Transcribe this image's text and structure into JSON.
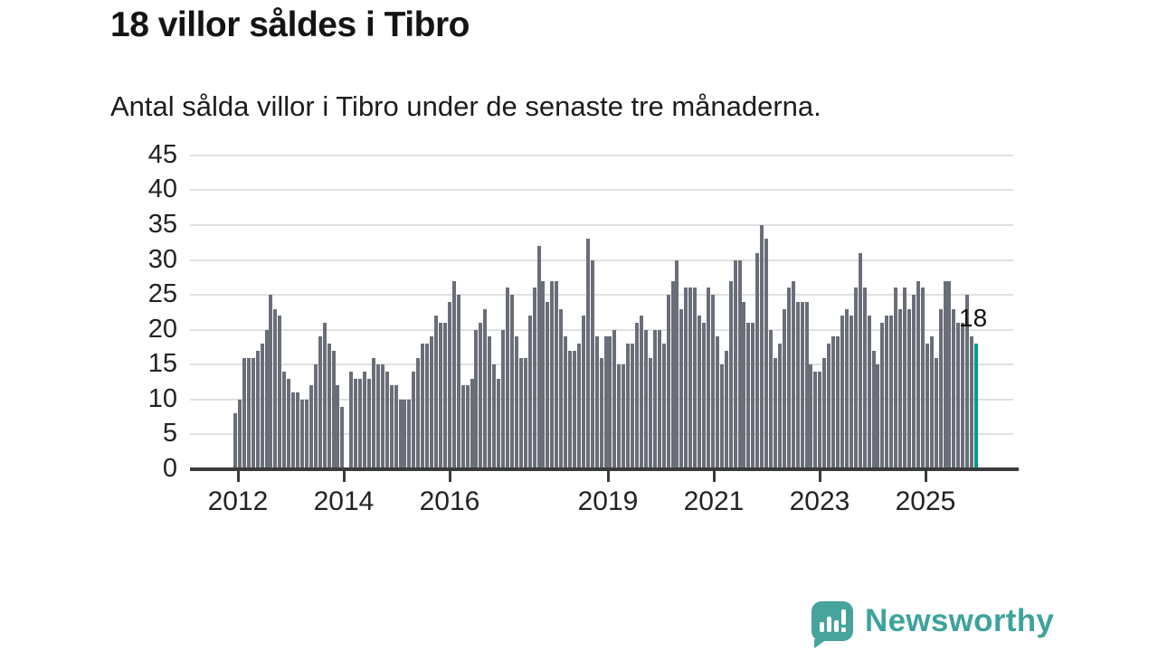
{
  "header": {
    "title": "18 villor såldes i Tibro",
    "subtitle": "Antal sålda villor i Tibro under de senaste tre månaderna."
  },
  "annotation": {
    "label": "18"
  },
  "logo": {
    "text": "Newsworthy",
    "icon": "newsworthy-speech-bubble-chart-icon"
  },
  "colors": {
    "bar": "#6a6e78",
    "highlight": "#009b8f",
    "grid": "#e0e0e0",
    "axis": "#3b3b3b",
    "text": "#1a1a1a",
    "logo_teal": "#3ea39c"
  },
  "chart_data": {
    "type": "bar",
    "title": "18 villor såldes i Tibro",
    "subtitle": "Antal sålda villor i Tibro under de senaste tre månaderna.",
    "xlabel": "",
    "ylabel": "",
    "ylim": [
      0,
      45
    ],
    "y_ticks": [
      0,
      5,
      10,
      15,
      20,
      25,
      30,
      35,
      40,
      45
    ],
    "x_tick_labels": [
      "2012",
      "2014",
      "2016",
      "2019",
      "2021",
      "2023",
      "2025"
    ],
    "x_unit": "month",
    "x_range_start": "2012",
    "x_range_end": "2025",
    "grid": true,
    "legend": false,
    "highlight": {
      "position": "last",
      "value": 18,
      "label": "18",
      "color": "#009b8f"
    },
    "values": [
      8,
      10,
      16,
      16,
      16,
      17,
      18,
      20,
      25,
      23,
      22,
      14,
      13,
      11,
      11,
      10,
      10,
      12,
      15,
      19,
      21,
      18,
      17,
      12,
      9,
      0,
      14,
      13,
      13,
      14,
      13,
      16,
      15,
      15,
      14,
      12,
      12,
      10,
      10,
      10,
      14,
      16,
      18,
      18,
      19,
      22,
      21,
      21,
      24,
      27,
      25,
      12,
      12,
      13,
      20,
      21,
      23,
      19,
      15,
      13,
      20,
      26,
      25,
      19,
      16,
      16,
      22,
      26,
      32,
      27,
      24,
      27,
      27,
      23,
      19,
      17,
      17,
      18,
      22,
      33,
      30,
      19,
      16,
      19,
      19,
      20,
      15,
      15,
      18,
      18,
      21,
      22,
      20,
      16,
      20,
      20,
      18,
      25,
      27,
      30,
      23,
      26,
      26,
      26,
      22,
      21,
      26,
      25,
      19,
      15,
      17,
      27,
      30,
      30,
      24,
      21,
      21,
      31,
      35,
      33,
      20,
      16,
      18,
      23,
      26,
      27,
      24,
      24,
      24,
      15,
      14,
      14,
      16,
      18,
      19,
      19,
      22,
      23,
      22,
      26,
      31,
      26,
      22,
      17,
      15,
      21,
      22,
      22,
      26,
      23,
      26,
      23,
      25,
      27,
      26,
      18,
      19,
      16,
      23,
      27,
      27,
      23,
      21,
      21,
      25,
      19,
      18
    ]
  }
}
